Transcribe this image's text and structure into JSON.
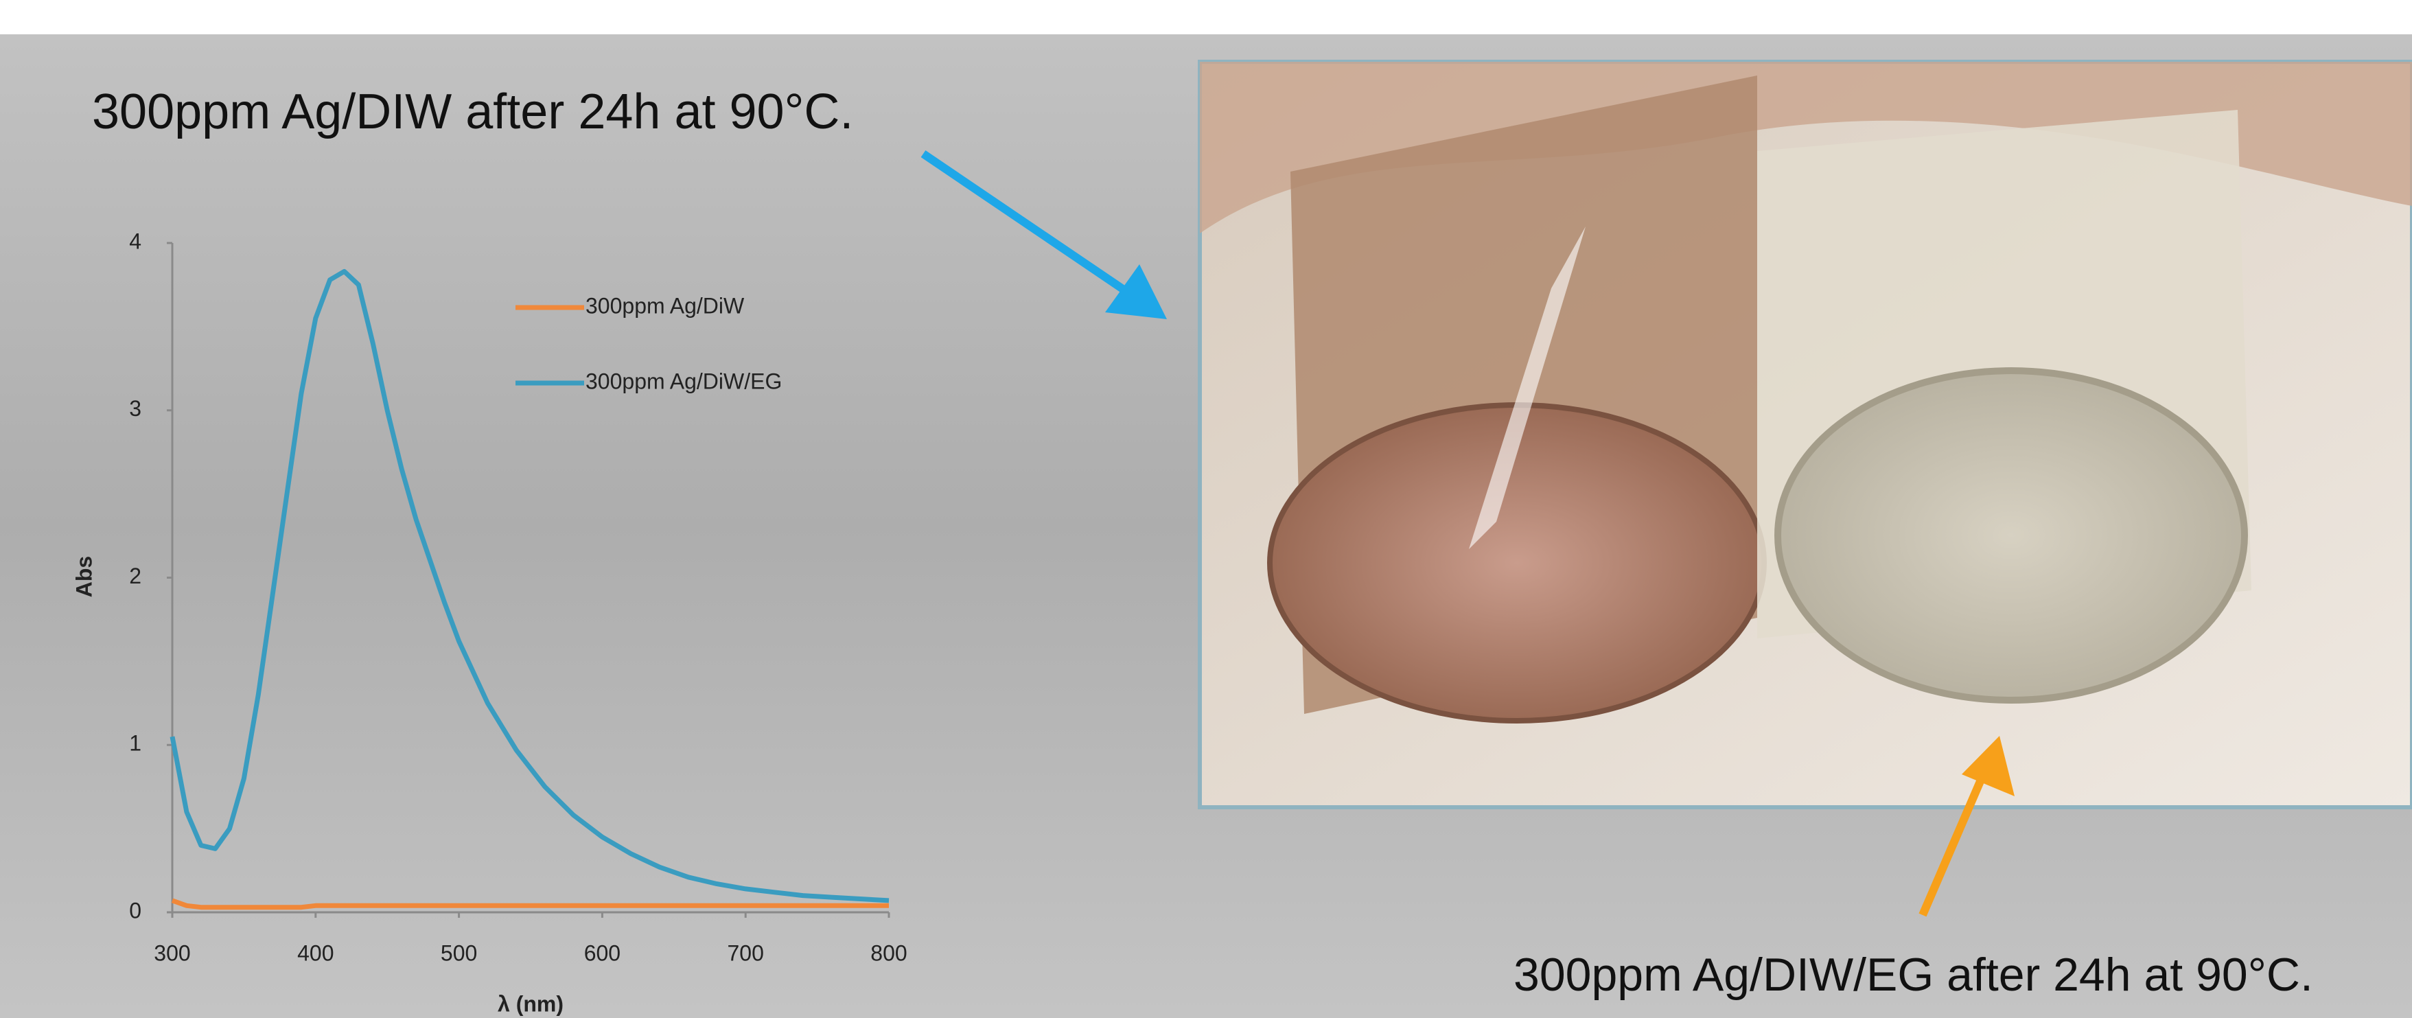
{
  "chart_data": {
    "type": "line",
    "annotations": [
      "300ppm Ag/DIW after 24h at 90°C.",
      "300ppm Ag/DIW/EG after 24h at 90°C."
    ],
    "x_label": "λ (nm)",
    "y_label": "Abs",
    "x": [
      300,
      310,
      320,
      330,
      340,
      350,
      360,
      370,
      380,
      390,
      400,
      410,
      420,
      430,
      440,
      450,
      460,
      470,
      480,
      490,
      500,
      520,
      540,
      560,
      580,
      600,
      620,
      640,
      660,
      680,
      700,
      720,
      740,
      760,
      780,
      800
    ],
    "series": [
      {
        "name": "300ppm Ag/DiW",
        "color": "#f0883a",
        "values": [
          0.07,
          0.04,
          0.03,
          0.03,
          0.03,
          0.03,
          0.03,
          0.03,
          0.03,
          0.03,
          0.04,
          0.04,
          0.04,
          0.04,
          0.04,
          0.04,
          0.04,
          0.04,
          0.04,
          0.04,
          0.04,
          0.04,
          0.04,
          0.04,
          0.04,
          0.04,
          0.04,
          0.04,
          0.04,
          0.04,
          0.04,
          0.04,
          0.04,
          0.04,
          0.04,
          0.04
        ]
      },
      {
        "name": "300ppm Ag/DiW/EG",
        "color": "#3a9cc0",
        "values": [
          1.05,
          0.6,
          0.4,
          0.38,
          0.5,
          0.8,
          1.3,
          1.9,
          2.5,
          3.1,
          3.55,
          3.78,
          3.83,
          3.75,
          3.4,
          3.0,
          2.65,
          2.35,
          2.1,
          1.85,
          1.62,
          1.25,
          0.97,
          0.75,
          0.58,
          0.45,
          0.35,
          0.27,
          0.21,
          0.17,
          0.14,
          0.12,
          0.1,
          0.09,
          0.08,
          0.07
        ]
      }
    ],
    "xlim": [
      300,
      800
    ],
    "xticks": [
      300,
      400,
      500,
      600,
      700,
      800
    ],
    "ylim": [
      0,
      4
    ],
    "yticks": [
      0,
      1,
      2,
      3,
      4
    ],
    "grid": false
  }
}
